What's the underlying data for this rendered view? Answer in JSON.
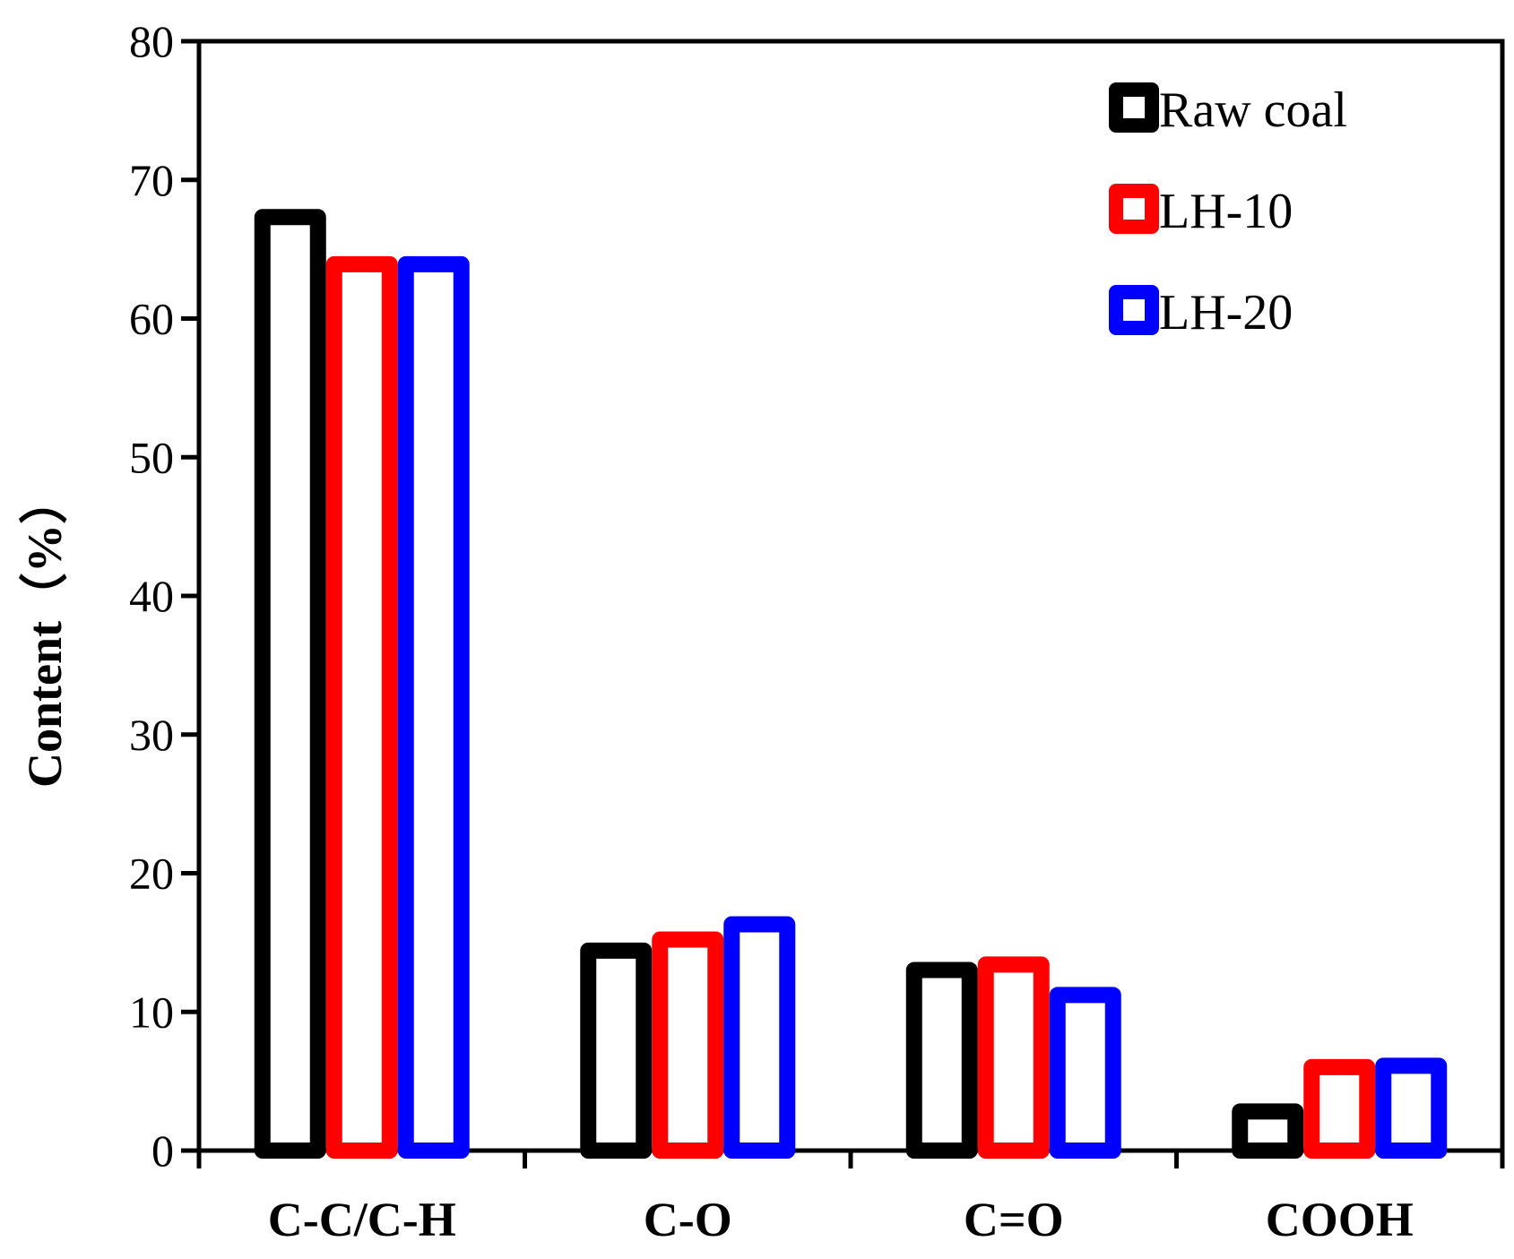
{
  "chart_data": {
    "type": "bar",
    "title": "",
    "xlabel": "",
    "ylabel": "Content（%）",
    "ylim": [
      0,
      80
    ],
    "yticks": [
      0,
      10,
      20,
      30,
      40,
      50,
      60,
      70,
      80
    ],
    "grid": false,
    "legend_position": "top-right",
    "categories": [
      "C-C/C-H",
      "C-O",
      "C=O",
      "COOH"
    ],
    "series": [
      {
        "name": "Raw coal",
        "color": "#000000",
        "values": [
          67.9,
          15.0,
          13.6,
          3.4
        ]
      },
      {
        "name": "LH-10",
        "color": "#ff0000",
        "values": [
          64.5,
          15.8,
          14.0,
          6.6
        ]
      },
      {
        "name": "LH-20",
        "color": "#0000ff",
        "values": [
          64.5,
          16.9,
          11.8,
          6.7
        ]
      }
    ]
  }
}
